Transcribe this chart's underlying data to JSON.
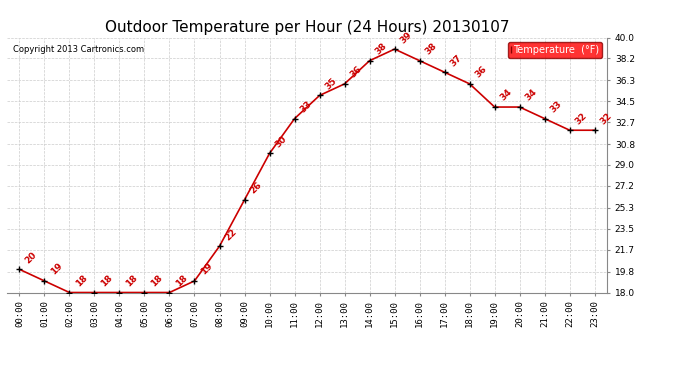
{
  "title": "Outdoor Temperature per Hour (24 Hours) 20130107",
  "copyright": "Copyright 2013 Cartronics.com",
  "legend_label": "Temperature  (°F)",
  "hours": [
    0,
    1,
    2,
    3,
    4,
    5,
    6,
    7,
    8,
    9,
    10,
    11,
    12,
    13,
    14,
    15,
    16,
    17,
    18,
    19,
    20,
    21,
    22,
    23
  ],
  "temps": [
    20,
    19,
    18,
    18,
    18,
    18,
    18,
    19,
    22,
    26,
    30,
    33,
    35,
    36,
    38,
    39,
    38,
    37,
    36,
    34,
    34,
    33,
    32,
    32
  ],
  "ylim": [
    18.0,
    40.0
  ],
  "yticks": [
    18.0,
    19.8,
    21.7,
    23.5,
    25.3,
    27.2,
    29.0,
    30.8,
    32.7,
    34.5,
    36.3,
    38.2,
    40.0
  ],
  "line_color": "#cc0000",
  "marker_color": "#000000",
  "grid_color": "#cccccc",
  "bg_color": "#ffffff",
  "title_fontsize": 11,
  "annot_fontsize": 6.5,
  "tick_fontsize": 6.5,
  "copyright_fontsize": 6
}
